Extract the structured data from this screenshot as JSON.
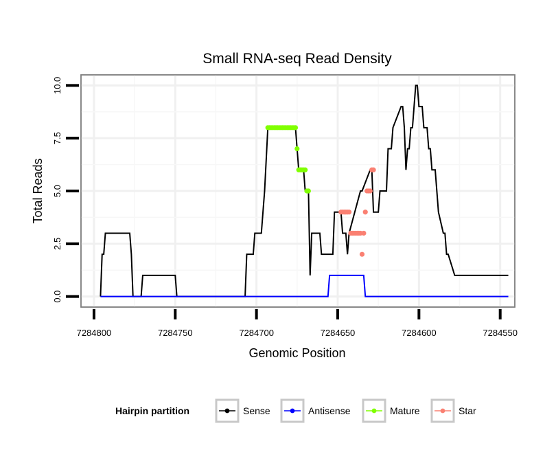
{
  "chart_data": {
    "type": "line",
    "title": "Small RNA-seq Read Density",
    "xlabel": "Genomic Position",
    "ylabel": "Total Reads",
    "x_reversed": true,
    "xlim": [
      7284808,
      7284541
    ],
    "ylim": [
      -0.5,
      10.5
    ],
    "x_ticks": [
      7284800,
      7284750,
      7284700,
      7284650,
      7284600,
      7284550
    ],
    "x_tick_labels": [
      "7284800",
      "7284750",
      "7284700",
      "7284650",
      "7284600",
      "7284550"
    ],
    "y_ticks": [
      0,
      2.5,
      5,
      7.5,
      10
    ],
    "y_tick_labels": [
      "0.0",
      "2.5",
      "5.0",
      "7.5",
      "10.0"
    ],
    "legend": {
      "title": "Hairpin partition",
      "position": "bottom",
      "entries": [
        {
          "label": "Sense",
          "color": "#000000"
        },
        {
          "label": "Antisense",
          "color": "#0000ff"
        },
        {
          "label": "Mature",
          "color": "#80ff00"
        },
        {
          "label": "Star",
          "color": "#fa8072"
        }
      ]
    },
    "series": [
      {
        "name": "Sense",
        "color": "#000000",
        "x": [
          7284796,
          7284795,
          7284794,
          7284793,
          7284778,
          7284777,
          7284776,
          7284775,
          7284771,
          7284770,
          7284769,
          7284750,
          7284749,
          7284748,
          7284707,
          7284706,
          7284705,
          7284702,
          7284701,
          7284697,
          7284696,
          7284695,
          7284693,
          7284692,
          7284691,
          7284690,
          7284689,
          7284688,
          7284676,
          7284675,
          7284674,
          7284672,
          7284671,
          7284670,
          7284668,
          7284667,
          7284666,
          7284664,
          7284663,
          7284662,
          7284661,
          7284660,
          7284653,
          7284652,
          7284648,
          7284647,
          7284645,
          7284644,
          7284643,
          7284636,
          7284635,
          7284630,
          7284629,
          7284628,
          7284627,
          7284626,
          7284625,
          7284624,
          7284620,
          7284619,
          7284617,
          7284616,
          7284611,
          7284610,
          7284609,
          7284608,
          7284607,
          7284606,
          7284605,
          7284604,
          7284603,
          7284602,
          7284601,
          7284600,
          7284598,
          7284597,
          7284595,
          7284594,
          7284593,
          7284592,
          7284591,
          7284590,
          7284589,
          7284588,
          7284585,
          7284584,
          7284583,
          7284582,
          7284578,
          7284577,
          7284576,
          7284575,
          7284573,
          7284572,
          7284571,
          7284570,
          7284568,
          7284567,
          7284566,
          7284565,
          7284563,
          7284562,
          7284561,
          7284560,
          7284545
        ],
        "y": [
          0,
          2,
          2,
          3,
          3,
          2,
          0,
          0,
          0,
          1,
          1,
          1,
          0,
          0,
          0,
          2,
          2,
          2,
          3,
          3,
          4,
          5,
          8,
          8,
          8,
          8,
          8,
          8,
          8,
          7,
          6,
          6,
          6,
          5,
          5,
          1,
          3,
          3,
          3,
          3,
          3,
          2,
          2,
          4,
          4,
          3,
          3,
          2,
          3,
          5,
          5,
          6,
          6,
          4,
          4,
          4,
          4,
          5,
          5,
          7,
          7,
          8,
          9,
          9,
          8,
          6,
          7,
          7,
          8,
          8,
          9,
          10,
          10,
          9,
          9,
          8,
          8,
          7,
          7,
          6,
          6,
          6,
          5,
          4,
          3,
          3,
          2,
          2,
          1,
          1,
          1,
          1,
          1,
          1,
          1,
          1,
          1,
          1,
          1,
          1,
          1,
          1,
          1,
          1,
          1
        ]
      },
      {
        "name": "Antisense",
        "color": "#0000ff",
        "x": [
          7284796,
          7284656,
          7284655,
          7284634,
          7284633,
          7284545
        ],
        "y": [
          0,
          0,
          1,
          1,
          0,
          0
        ]
      },
      {
        "name": "Mature",
        "color": "#80ff00",
        "x": [
          7284693,
          7284692,
          7284691,
          7284690,
          7284689,
          7284688,
          7284687,
          7284686,
          7284685,
          7284684,
          7284683,
          7284682,
          7284681,
          7284680,
          7284679,
          7284678,
          7284677,
          7284676,
          7284675,
          7284674,
          7284673,
          7284672,
          7284671,
          7284670,
          7284669,
          7284668
        ],
        "y": [
          8,
          8,
          8,
          8,
          8,
          8,
          8,
          8,
          8,
          8,
          8,
          8,
          8,
          8,
          8,
          8,
          8,
          8,
          7,
          6,
          6,
          6,
          6,
          6,
          5,
          5
        ]
      },
      {
        "name": "Star",
        "color": "#fa8072",
        "x": [
          7284648,
          7284647,
          7284646,
          7284645,
          7284644,
          7284643,
          7284642,
          7284641,
          7284640,
          7284639,
          7284638,
          7284637,
          7284636,
          7284635,
          7284634,
          7284633,
          7284632,
          7284631,
          7284630,
          7284629,
          7284628
        ],
        "y": [
          4,
          4,
          4,
          4,
          4,
          4,
          3,
          3,
          3,
          3,
          3,
          3,
          3,
          2,
          3,
          4,
          5,
          5,
          5,
          6,
          6
        ]
      }
    ]
  }
}
